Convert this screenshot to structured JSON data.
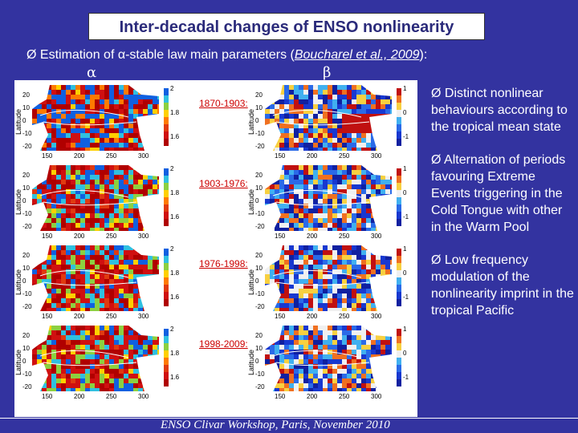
{
  "title": "Inter-decadal changes of ENSO nonlinearity",
  "subtitle": {
    "bullet": "Ø",
    "prefix": "Estimation of ",
    "alpha": "α",
    "middle": "-stable law main parameters (",
    "ref": "Boucharel et al., 2009",
    "suffix": "):"
  },
  "col_alpha": "α",
  "col_beta": "β",
  "periods": [
    "1870-1903:",
    "1903-1976:",
    "1976-1998:",
    "1998-2009:"
  ],
  "axis": {
    "ylabel": "Latitude",
    "xticks": [
      "150",
      "200",
      "250",
      "300"
    ],
    "yticks": [
      "20",
      "10",
      "0",
      "-10",
      "-20"
    ],
    "alpha_scale": [
      "2",
      "1.8",
      "1.6"
    ],
    "beta_scale": [
      "1",
      "0",
      "-1"
    ]
  },
  "bullets": [
    {
      "marker": "Ø",
      "text": "Distinct nonlinear behaviours according to the tropical mean state"
    },
    {
      "marker": "Ø",
      "text": "Alternation of periods favouring Extreme Events triggering in the Cold Tongue with other in the Warm Pool"
    },
    {
      "marker": "Ø",
      "text": "Low frequency modulation of the nonlinearity imprint in the tropical Pacific"
    }
  ],
  "footer": "ENSO Clivar Workshop, Paris, November 2010",
  "colors": {
    "background": "#3333a0",
    "title_text": "#2a2a7a",
    "period_label": "#cc0000"
  }
}
